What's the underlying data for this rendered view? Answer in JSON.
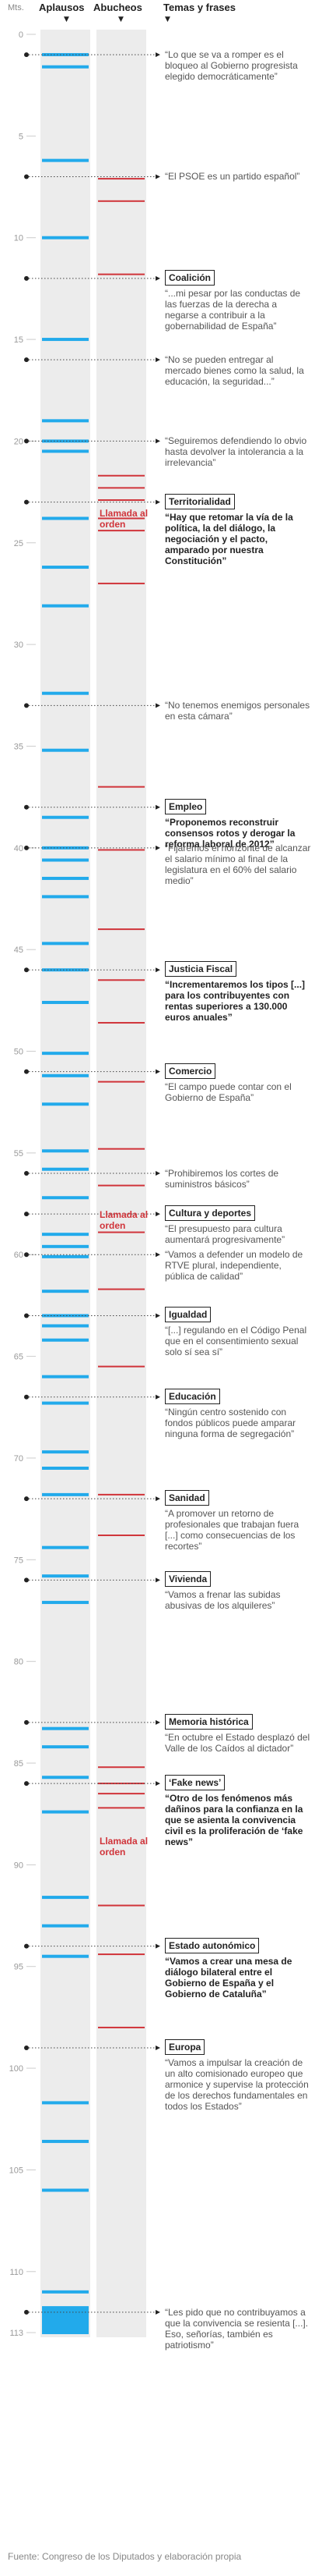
{
  "headers": {
    "minutes": "Mts.",
    "applause": "Aplausos",
    "boos": "Abucheos",
    "topics": "Temas y frases",
    "arrow": "▼"
  },
  "colors": {
    "applause": "#22aaeb",
    "boos": "#d0343a",
    "column_bg": "#ececec",
    "axis_text": "#999999",
    "dot_line": "#444444"
  },
  "chart_data": {
    "type": "timeline",
    "axis": {
      "label": "Mts.",
      "min": 0,
      "max": 113,
      "ticks": [
        0,
        5,
        10,
        15,
        20,
        25,
        30,
        35,
        40,
        45,
        50,
        55,
        60,
        65,
        70,
        75,
        80,
        85,
        90,
        95,
        100,
        105,
        110,
        113
      ],
      "tick_labels": [
        "0",
        "5",
        "10",
        "15",
        "20",
        "25",
        "30",
        "35",
        "40",
        "45",
        "50",
        "55",
        "60",
        "65",
        "70",
        "75",
        "80",
        "85",
        "90",
        "95",
        "100",
        "105",
        "110",
        "113"
      ]
    },
    "applause_minutes": [
      1.0,
      1.6,
      6.2,
      10.0,
      15.0,
      19.0,
      20.0,
      20.5,
      23.8,
      26.2,
      28.1,
      32.4,
      35.2,
      38.5,
      40.0,
      40.6,
      41.5,
      42.4,
      44.7,
      46.0,
      47.6,
      50.1,
      51.2,
      52.6,
      54.9,
      55.8,
      57.2,
      59.0,
      59.6,
      60.1,
      61.8,
      63.0,
      63.5,
      64.2,
      66.0,
      67.3,
      69.7,
      70.5,
      71.8,
      74.4,
      75.8,
      77.1,
      83.3,
      84.2,
      85.7,
      87.4,
      91.6,
      93.0,
      94.5,
      101.7,
      103.6,
      106.0,
      111.0,
      113.0
    ],
    "applause_block": [
      111.7,
      113.0
    ],
    "boos_minutes": [
      7.1,
      8.2,
      11.8,
      21.7,
      22.3,
      22.9,
      23.8,
      24.4,
      27.0,
      37.0,
      40.1,
      44.0,
      46.5,
      48.6,
      51.5,
      54.8,
      56.6,
      58.9,
      61.7,
      65.5,
      71.8,
      73.8,
      85.2,
      86.0,
      86.5,
      87.2,
      92.0,
      94.4,
      98.0
    ],
    "call_to_order_minutes": [
      23.5,
      58.0,
      88.8
    ]
  },
  "call_to_order_label": "Llamada al orden",
  "topics": [
    {
      "minute": 1,
      "title": "",
      "quote": "“Lo que se va a romper es el bloqueo al Gobierno progresista elegido democráticamente”",
      "bold": false
    },
    {
      "minute": 7,
      "title": "",
      "quote": "“El PSOE es un partido español”",
      "bold": false
    },
    {
      "minute": 12,
      "title": "Coalición",
      "quote": "“...mi pesar por las conductas de las fuerzas de la derecha a negarse a contribuir a la gobernabilidad de España”",
      "bold": false
    },
    {
      "minute": 16,
      "title": "",
      "quote": "“No se pueden entregar al mercado bienes como la salud, la educación, la seguridad...”",
      "bold": false
    },
    {
      "minute": 20,
      "title": "",
      "quote": "“Seguiremos defendiendo lo obvio hasta devolver la intolerancia a la irrelevancia”",
      "bold": false
    },
    {
      "minute": 23,
      "title": "Territorialidad",
      "quote": "“Hay que retomar la vía de la política, la del diálogo, la negociación y el pacto, amparado por nuestra Constitución”",
      "bold": true
    },
    {
      "minute": 33,
      "title": "",
      "quote": "“No tenemos enemigos personales en esta cámara”",
      "bold": false
    },
    {
      "minute": 38,
      "title": "Empleo",
      "quote": "“Proponemos reconstruir consensos rotos y derogar la reforma laboral de 2012”",
      "bold": true
    },
    {
      "minute": 40,
      "title": "",
      "quote": "“Fijaremos el horizonte de alcanzar el salario mínimo al final de la legislatura en el 60% del salario medio”",
      "bold": false
    },
    {
      "minute": 46,
      "title": "Justicia Fiscal",
      "quote": "“Incrementaremos los tipos [...] para los contribuyentes con rentas superiores a 130.000 euros anuales”",
      "bold": true
    },
    {
      "minute": 51,
      "title": "Comercio",
      "quote": "“El campo puede contar con el Gobierno de España”",
      "bold": false
    },
    {
      "minute": 56,
      "title": "",
      "quote": "“Prohibiremos  los cortes de suministros básicos”",
      "bold": false
    },
    {
      "minute": 58,
      "title": "Cultura y deportes",
      "quote": "“El presupuesto para cultura aumentará progresivamente”",
      "bold": false
    },
    {
      "minute": 60,
      "title": "",
      "quote": "“Vamos a defender un modelo de RTVE plural, independiente, pública de calidad”",
      "bold": false
    },
    {
      "minute": 63,
      "title": "Igualdad",
      "quote": "“[...] regulando en el Código Penal que en el consentimiento sexual solo sí sea sí”",
      "bold": false
    },
    {
      "minute": 67,
      "title": "Educación",
      "quote": "“Ningún centro sostenido con fondos públicos puede amparar ninguna forma de segregación”",
      "bold": false
    },
    {
      "minute": 72,
      "title": "Sanidad",
      "quote": "“A promover un retorno de profesionales que trabajan fuera [...] como consecuencias de los recortes”",
      "bold": false
    },
    {
      "minute": 76,
      "title": "Vivienda",
      "quote": "“Vamos a frenar las subidas abusivas de los alquileres”",
      "bold": false
    },
    {
      "minute": 83,
      "title": "Memoria histórica",
      "quote": "“En octubre el Estado desplazó del Valle de los Caídos al dictador”",
      "bold": false
    },
    {
      "minute": 86,
      "title": "‘Fake news’",
      "quote": "“Otro de los fenómenos más dañinos para la confianza en la que se asienta la convivencia civil es la proliferación de ‘fake news”",
      "bold": true
    },
    {
      "minute": 94,
      "title": "Estado autonómico",
      "quote": "“Vamos a crear una mesa de diálogo bilateral entre el Gobierno de España y el Gobierno de Cataluña”",
      "bold": true
    },
    {
      "minute": 99,
      "title": "Europa",
      "quote": "“Vamos a impulsar la creación de un alto comisionado europeo que armonice y supervise la protección de los derechos fundamentales en todos los Estados”",
      "bold": false
    },
    {
      "minute": 112,
      "title": "",
      "quote": "“Les pido que no contribuyamos a que la convivencia se resienta [...]. Eso, señorías, también es patriotismo”",
      "bold": false
    }
  ],
  "source": "Fuente: Congreso de los Diputados y elaboración propia"
}
